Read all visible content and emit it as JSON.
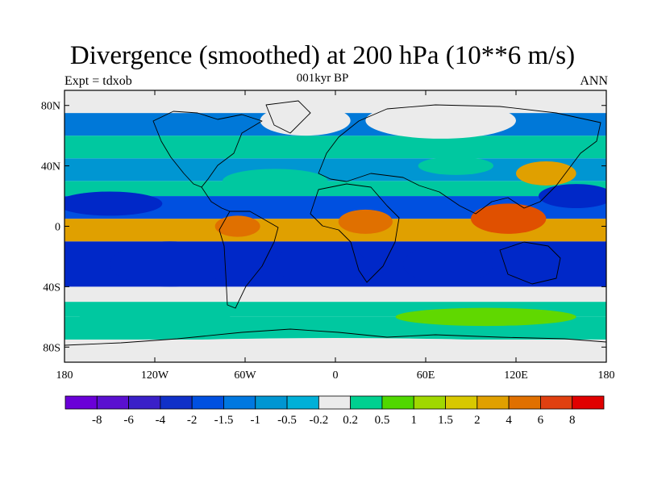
{
  "title": "Divergence (smoothed) at 200 hPa (10**6 m/s)",
  "experiment_label": "Expt = tdxob",
  "period_label": "001kyr BP",
  "season_label": "ANN",
  "map": {
    "projection": "cylindrical-equidistant",
    "lon_range": [
      -180,
      180
    ],
    "lat_range": [
      -90,
      90
    ],
    "lat_ticks": [
      {
        "value": 80,
        "label": "80N"
      },
      {
        "value": 40,
        "label": "40N"
      },
      {
        "value": 0,
        "label": "0"
      },
      {
        "value": -40,
        "label": "40S"
      },
      {
        "value": -80,
        "label": "80S"
      }
    ],
    "lon_ticks": [
      {
        "value": -180,
        "label": "180"
      },
      {
        "value": -120,
        "label": "120W"
      },
      {
        "value": -60,
        "label": "60W"
      },
      {
        "value": 0,
        "label": "0"
      },
      {
        "value": 60,
        "label": "60E"
      },
      {
        "value": 120,
        "label": "120E"
      },
      {
        "value": 180,
        "label": "180"
      }
    ],
    "bands": [
      {
        "lat": [
          -90,
          -75
        ],
        "color": "#ebebeb"
      },
      {
        "lat": [
          -75,
          -60
        ],
        "color": "#00c8a0"
      },
      {
        "lat": [
          -60,
          -50
        ],
        "color": "#00c8a0"
      },
      {
        "lat": [
          -50,
          -40
        ],
        "color": "#ebebeb"
      },
      {
        "lat": [
          -40,
          -10
        ],
        "color": "#0028c8"
      },
      {
        "lat": [
          -10,
          5
        ],
        "color": "#e0a000"
      },
      {
        "lat": [
          5,
          20
        ],
        "color": "#0050e0"
      },
      {
        "lat": [
          20,
          30
        ],
        "color": "#00c8a0"
      },
      {
        "lat": [
          30,
          45
        ],
        "color": "#0096d2"
      },
      {
        "lat": [
          45,
          60
        ],
        "color": "#00c8a0"
      },
      {
        "lat": [
          60,
          75
        ],
        "color": "#0078d8"
      },
      {
        "lat": [
          75,
          90
        ],
        "color": "#ebebeb"
      }
    ],
    "features": [
      {
        "lon": -110,
        "lat": -25,
        "rx": 40,
        "ry": 15,
        "color": "#0028c8"
      },
      {
        "lon": -10,
        "lat": -25,
        "rx": 30,
        "ry": 14,
        "color": "#0028c8"
      },
      {
        "lon": 75,
        "lat": -25,
        "rx": 30,
        "ry": 13,
        "color": "#0028c8"
      },
      {
        "lon": -150,
        "lat": 15,
        "rx": 35,
        "ry": 8,
        "color": "#0028c8"
      },
      {
        "lon": 160,
        "lat": 20,
        "rx": 25,
        "ry": 8,
        "color": "#0028c8"
      },
      {
        "lon": 115,
        "lat": 5,
        "rx": 25,
        "ry": 10,
        "color": "#e05000"
      },
      {
        "lon": 20,
        "lat": 3,
        "rx": 18,
        "ry": 8,
        "color": "#e07000"
      },
      {
        "lon": -65,
        "lat": 0,
        "rx": 15,
        "ry": 7,
        "color": "#e07000"
      },
      {
        "lon": -40,
        "lat": 30,
        "rx": 35,
        "ry": 8,
        "color": "#00c8a0"
      },
      {
        "lon": 140,
        "lat": 35,
        "rx": 20,
        "ry": 8,
        "color": "#e0a000"
      },
      {
        "lon": 80,
        "lat": 40,
        "rx": 25,
        "ry": 6,
        "color": "#00c8a0"
      },
      {
        "lon": -120,
        "lat": -60,
        "rx": 50,
        "ry": 6,
        "color": "#00c8a0"
      },
      {
        "lon": 100,
        "lat": -60,
        "rx": 60,
        "ry": 6,
        "color": "#60d800"
      },
      {
        "lon": -20,
        "lat": 70,
        "rx": 30,
        "ry": 10,
        "color": "#ebebeb"
      },
      {
        "lon": 70,
        "lat": 70,
        "rx": 50,
        "ry": 12,
        "color": "#ebebeb"
      },
      {
        "lon": 0,
        "lat": -82,
        "rx": 180,
        "ry": 8,
        "color": "#ebebeb"
      }
    ]
  },
  "colorbar": {
    "colors": [
      "#6a00d8",
      "#5a10d0",
      "#3a20c8",
      "#1030c8",
      "#0050e0",
      "#0078e0",
      "#0096d2",
      "#00b0d8",
      "#ebebeb",
      "#00d090",
      "#50d800",
      "#a0d800",
      "#d8c800",
      "#e0a000",
      "#e07000",
      "#e04010",
      "#e00000"
    ],
    "labels": [
      "-8",
      "-6",
      "-4",
      "-2",
      "-1.5",
      "-1",
      "-0.5",
      "-0.2",
      "0.2",
      "0.5",
      "1",
      "1.5",
      "2",
      "4",
      "6",
      "8"
    ]
  }
}
